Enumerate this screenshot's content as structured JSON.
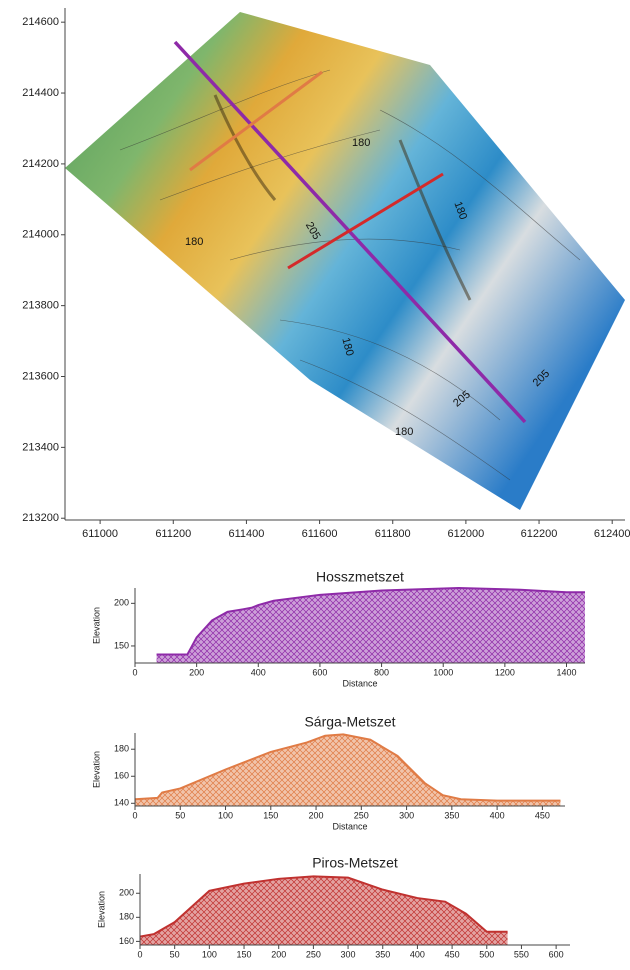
{
  "chart_data": [
    {
      "type": "map",
      "xlim": [
        610904,
        612435
      ],
      "xticks": [
        611000,
        611200,
        611400,
        611600,
        611800,
        612000,
        612200,
        612400
      ],
      "ylim": [
        213195,
        214640
      ],
      "yticks": [
        213200,
        213400,
        213600,
        213800,
        214000,
        214200,
        214400,
        214600
      ],
      "annotations": [
        "180",
        "205",
        "180",
        "205",
        "180",
        "205",
        "180",
        "180"
      ]
    },
    {
      "type": "area",
      "title": "Hosszmetszet",
      "xlabel": "Distance",
      "ylabel": "Elevation",
      "color": "#8e2aa8",
      "x": [
        70,
        170,
        200,
        250,
        300,
        350,
        380,
        400,
        450,
        600,
        800,
        1050,
        1250,
        1400,
        1460
      ],
      "y": [
        140,
        140,
        160,
        180,
        190,
        193,
        195,
        198,
        203,
        210,
        215,
        218,
        216,
        213,
        213
      ],
      "xlim": [
        0,
        1460
      ],
      "xticks": [
        0,
        200,
        400,
        600,
        800,
        1000,
        1200,
        1400
      ],
      "ylim": [
        130,
        218
      ],
      "yticks": [
        150,
        200
      ]
    },
    {
      "type": "area",
      "title": "Sárga-Metszet",
      "xlabel": "Distance",
      "ylabel": "Elevation",
      "color": "#e07b45",
      "x": [
        0,
        25,
        30,
        50,
        100,
        150,
        190,
        210,
        230,
        260,
        290,
        320,
        340,
        360,
        400,
        470
      ],
      "y": [
        143,
        144,
        148,
        151,
        165,
        178,
        185,
        190,
        191,
        187,
        175,
        155,
        146,
        143,
        142,
        142
      ],
      "xlim": [
        0,
        475
      ],
      "xticks": [
        0,
        50,
        100,
        150,
        200,
        250,
        300,
        350,
        400,
        450
      ],
      "ylim": [
        138,
        192
      ],
      "yticks": [
        140,
        160,
        180
      ]
    },
    {
      "type": "area",
      "title": "Piros-Metszet",
      "ylabel": "Elevation",
      "color": "#c0312f",
      "x": [
        0,
        20,
        50,
        100,
        150,
        200,
        250,
        300,
        350,
        400,
        440,
        470,
        500,
        530
      ],
      "y": [
        164,
        166,
        176,
        202,
        208,
        212,
        214,
        213,
        203,
        196,
        193,
        183,
        168,
        168
      ],
      "xlim": [
        0,
        620
      ],
      "xticks": [
        0,
        50,
        100,
        150,
        200,
        250,
        300,
        350,
        400,
        450,
        500,
        550,
        600
      ],
      "ylim": [
        157,
        216
      ],
      "yticks": [
        160,
        180,
        200
      ]
    }
  ]
}
